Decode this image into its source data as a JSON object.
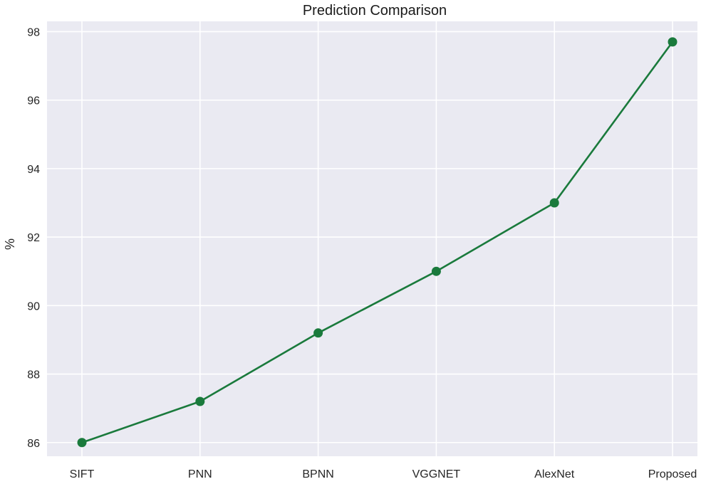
{
  "chart_data": {
    "type": "line",
    "title": "Prediction Comparison",
    "xlabel": "",
    "ylabel": "%",
    "categories": [
      "SIFT",
      "PNN",
      "BPNN",
      "VGGNET",
      "AlexNet",
      "Proposed"
    ],
    "series": [
      {
        "values": [
          86.0,
          87.2,
          89.2,
          91.0,
          93.0,
          97.7
        ]
      }
    ],
    "yticks": [
      86,
      88,
      90,
      92,
      94,
      96,
      98
    ],
    "ylim": [
      85.6,
      98.3
    ],
    "grid": true,
    "legend": "none"
  },
  "colors": {
    "plot_background": "#eaeaf2",
    "grid": "#ffffff",
    "series": "#1a7a3c"
  }
}
